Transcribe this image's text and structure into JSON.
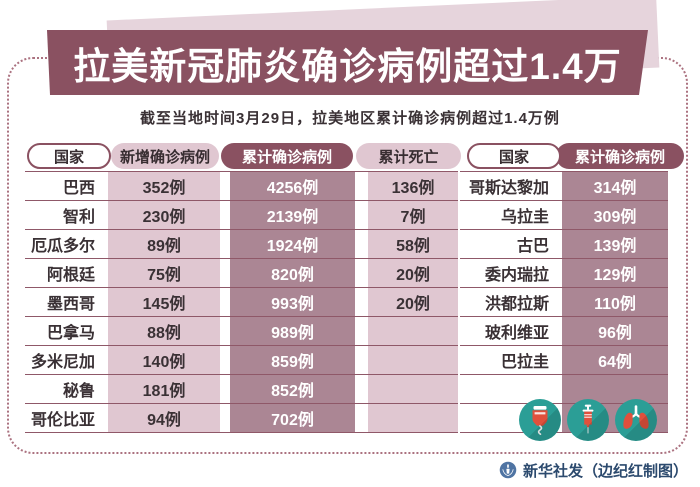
{
  "title": "拉美新冠肺炎确诊病例超过1.4万",
  "subtitle": "截至当地时间3月29日，拉美地区累计确诊病例超过1.4万例",
  "credit": "新华社发（边纪红制图）",
  "colors": {
    "banner_maroon": "#8a5161",
    "banner_backdrop_pink": "#e6d4dc",
    "cell_pink": "#e0c7d1",
    "cell_mauve": "#ab8694",
    "row_line": "#8f5868",
    "dotted_border": "#ab7280",
    "icon_teal": "#2b9e96",
    "icon_red": "#e0503c",
    "credit_blue": "#2c4a6e"
  },
  "icons": {
    "bottom_right": [
      "iv-drip-icon",
      "syringe-icon",
      "lungs-icon"
    ],
    "credit_logo": "xinhua-logo-icon"
  },
  "chart_data": [
    {
      "type": "table",
      "name": "left-table",
      "columns": [
        "国家",
        "新增确诊病例",
        "累计确诊病例",
        "累计死亡"
      ],
      "rows": [
        [
          "巴西",
          "352例",
          "4256例",
          "136例"
        ],
        [
          "智利",
          "230例",
          "2139例",
          "7例"
        ],
        [
          "厄瓜多尔",
          "89例",
          "1924例",
          "58例"
        ],
        [
          "阿根廷",
          "75例",
          "820例",
          "20例"
        ],
        [
          "墨西哥",
          "145例",
          "993例",
          "20例"
        ],
        [
          "巴拿马",
          "88例",
          "989例",
          ""
        ],
        [
          "多米尼加",
          "140例",
          "859例",
          ""
        ],
        [
          "秘鲁",
          "181例",
          "852例",
          ""
        ],
        [
          "哥伦比亚",
          "94例",
          "702例",
          ""
        ]
      ]
    },
    {
      "type": "table",
      "name": "right-table",
      "columns": [
        "国家",
        "累计确诊病例"
      ],
      "rows": [
        [
          "哥斯达黎加",
          "314例"
        ],
        [
          "乌拉圭",
          "309例"
        ],
        [
          "古巴",
          "139例"
        ],
        [
          "委内瑞拉",
          "129例"
        ],
        [
          "洪都拉斯",
          "110例"
        ],
        [
          "玻利维亚",
          "96例"
        ],
        [
          "巴拉圭",
          "64例"
        ],
        [
          "",
          ""
        ],
        [
          "",
          ""
        ]
      ]
    }
  ]
}
